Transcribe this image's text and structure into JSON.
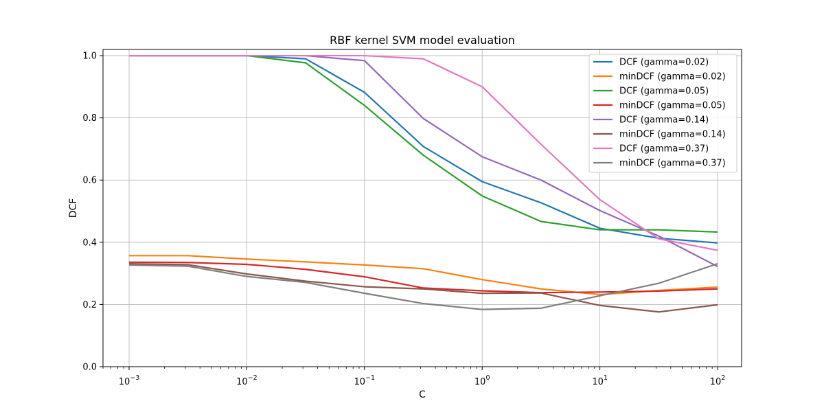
{
  "chart_data": {
    "type": "line",
    "title": "RBF kernel SVM model evaluation",
    "xlabel": "C",
    "ylabel": "DCF",
    "xscale": "log",
    "xlim": [
      0.0006,
      160
    ],
    "ylim": [
      0,
      1.02
    ],
    "grid": true,
    "legend_position": "top-right",
    "x": [
      0.001,
      0.00316,
      0.01,
      0.0316,
      0.1,
      0.316,
      1,
      3.16,
      10,
      31.6,
      100
    ],
    "x_ticks": [
      {
        "value": 0.001,
        "base": "10",
        "exp": "−3"
      },
      {
        "value": 0.01,
        "base": "10",
        "exp": "−2"
      },
      {
        "value": 0.1,
        "base": "10",
        "exp": "−1"
      },
      {
        "value": 1,
        "base": "10",
        "exp": "0"
      },
      {
        "value": 10,
        "base": "10",
        "exp": "1"
      },
      {
        "value": 100,
        "base": "10",
        "exp": "2"
      }
    ],
    "y_ticks": [
      {
        "value": 0.0,
        "label": "0.0"
      },
      {
        "value": 0.2,
        "label": "0.2"
      },
      {
        "value": 0.4,
        "label": "0.4"
      },
      {
        "value": 0.6,
        "label": "0.6"
      },
      {
        "value": 0.8,
        "label": "0.8"
      },
      {
        "value": 1.0,
        "label": "1.0"
      }
    ],
    "series": [
      {
        "name": "DCF (gamma=0.02)",
        "color": "#1f77b4",
        "values": [
          1.0,
          1.0,
          1.0,
          0.99,
          0.882,
          0.708,
          0.595,
          0.527,
          0.445,
          0.413,
          0.398
        ]
      },
      {
        "name": "minDCF (gamma=0.02)",
        "color": "#ff7f0e",
        "values": [
          0.357,
          0.357,
          0.346,
          0.337,
          0.327,
          0.315,
          0.28,
          0.25,
          0.232,
          0.245,
          0.256
        ]
      },
      {
        "name": "DCF (gamma=0.05)",
        "color": "#2ca02c",
        "values": [
          1.0,
          1.0,
          1.0,
          0.977,
          0.84,
          0.68,
          0.549,
          0.467,
          0.44,
          0.44,
          0.433
        ]
      },
      {
        "name": "minDCF (gamma=0.05)",
        "color": "#d62728",
        "values": [
          0.336,
          0.335,
          0.329,
          0.313,
          0.289,
          0.253,
          0.244,
          0.238,
          0.24,
          0.243,
          0.25
        ]
      },
      {
        "name": "DCF (gamma=0.14)",
        "color": "#9467bd",
        "values": [
          1.0,
          1.0,
          1.0,
          1.0,
          0.984,
          0.798,
          0.675,
          0.6,
          0.502,
          0.42,
          0.322
        ]
      },
      {
        "name": "minDCF (gamma=0.14)",
        "color": "#8c564b",
        "values": [
          0.331,
          0.328,
          0.298,
          0.275,
          0.257,
          0.25,
          0.236,
          0.237,
          0.197,
          0.176,
          0.199
        ]
      },
      {
        "name": "DCF (gamma=0.37)",
        "color": "#e377c2",
        "values": [
          1.0,
          1.0,
          1.0,
          1.0,
          1.0,
          0.99,
          0.9,
          0.715,
          0.537,
          0.411,
          0.374
        ]
      },
      {
        "name": "minDCF (gamma=0.37)",
        "color": "#7f7f7f",
        "values": [
          0.327,
          0.323,
          0.29,
          0.271,
          0.236,
          0.203,
          0.184,
          0.188,
          0.228,
          0.268,
          0.331
        ]
      }
    ]
  }
}
